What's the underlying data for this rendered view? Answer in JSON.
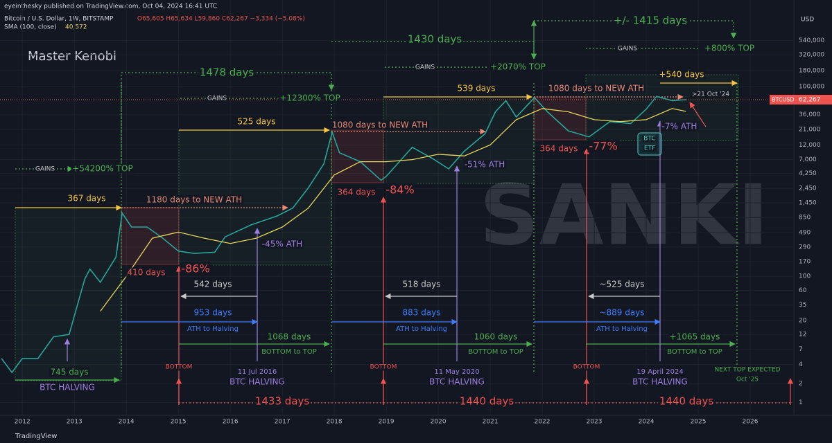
{
  "header": {
    "published": "eyeinthesky published on TradingView.com, Oct 04, 2024 16:41 UTC",
    "symbol": "Bitcoin / U.S. Dollar, 1W, BITSTAMP",
    "ohlc": "O65,605 H65,634 L59,860 C62,267 −3,334 (−5.08%)",
    "sma_name": "SMA (100, close)",
    "sma_value": "40,572",
    "currency": "USD",
    "author": "Master Kenobi",
    "watermark": "SANKI",
    "footer": "TradingView"
  },
  "chart_data": {
    "type": "line",
    "log_y": true,
    "grid": true,
    "xlim": [
      2011.57,
      2026.84
    ],
    "ylim": [
      0.63,
      857000
    ],
    "xticks": [
      2012,
      2013,
      2014,
      2015,
      2016,
      2017,
      2018,
      2019,
      2020,
      2021,
      2022,
      2023,
      2024,
      2025,
      2026
    ],
    "yticks": [
      {
        "value": 540000,
        "label": "540,000"
      },
      {
        "value": 320000,
        "label": "320,000"
      },
      {
        "value": 180000,
        "label": "180,000"
      },
      {
        "value": 100000,
        "label": "100,000"
      },
      {
        "value": 36000,
        "label": "36,000"
      },
      {
        "value": 21000,
        "label": "21,000"
      },
      {
        "value": 12000,
        "label": "12,000"
      },
      {
        "value": 7000,
        "label": "7,000"
      },
      {
        "value": 4250,
        "label": "4,250"
      },
      {
        "value": 2450,
        "label": "2,450"
      },
      {
        "value": 1450,
        "label": "1,450"
      },
      850,
      490,
      290,
      170,
      100,
      60,
      35,
      20,
      12,
      7,
      4,
      2,
      1
    ],
    "series": [
      {
        "name": "BTCUSD",
        "color": "#26a69a",
        "x": [
          2011.6,
          2011.8,
          2012.0,
          2012.3,
          2012.6,
          2012.9,
          2013.2,
          2013.3,
          2013.5,
          2013.8,
          2013.92,
          2014.1,
          2014.4,
          2014.7,
          2015.0,
          2015.3,
          2015.7,
          2015.9,
          2016.4,
          2016.9,
          2017.2,
          2017.5,
          2017.8,
          2017.96,
          2018.1,
          2018.5,
          2018.9,
          2019.0,
          2019.5,
          2019.9,
          2020.2,
          2020.5,
          2020.9,
          2021.1,
          2021.3,
          2021.5,
          2021.85,
          2022.1,
          2022.5,
          2022.9,
          2023.3,
          2023.7,
          2024.0,
          2024.2,
          2024.5,
          2024.76
        ],
        "values": [
          5,
          3,
          5,
          5,
          11,
          12,
          90,
          130,
          80,
          200,
          1000,
          600,
          600,
          400,
          250,
          230,
          240,
          420,
          650,
          900,
          1200,
          2500,
          6000,
          19000,
          9000,
          6500,
          3300,
          3800,
          11000,
          7200,
          5000,
          9500,
          18000,
          40000,
          60000,
          33000,
          67000,
          40000,
          20000,
          16000,
          28000,
          26000,
          44000,
          70000,
          60000,
          62267
        ]
      },
      {
        "name": "SMA (100, close)",
        "color": "#e6d55a",
        "x": [
          2013.5,
          2014.0,
          2014.5,
          2015.0,
          2015.5,
          2016.0,
          2016.5,
          2017.0,
          2017.5,
          2018.0,
          2018.5,
          2019.0,
          2019.5,
          2020.0,
          2020.5,
          2021.0,
          2021.5,
          2022.0,
          2022.5,
          2023.0,
          2023.5,
          2024.0,
          2024.5,
          2024.76
        ],
        "values": [
          28,
          100,
          400,
          500,
          400,
          330,
          400,
          600,
          1200,
          4000,
          6500,
          6500,
          7000,
          8500,
          8000,
          12000,
          30000,
          45000,
          40000,
          30000,
          28000,
          30000,
          45000,
          40572
        ]
      }
    ],
    "last_value": 62267,
    "last_value_label": "62,267",
    "last_value_name": "BTCUSD",
    "annotations": [
      "+/- 1415 days",
      "1430 days",
      "1478 days",
      "GAINS",
      "+800% TOP",
      "GAINS",
      "+2070% TOP",
      "GAINS",
      "+12300% TOP",
      "GAINS",
      "+54200% TOP",
      "525 days",
      "539 days",
      "+540 days",
      "367 days",
      "1080 days to NEW ATH",
      "1080 days to NEW ATH",
      "1180 days to NEW ATH",
      "364 days",
      "-84%",
      "364 days",
      "-77%",
      "410 days",
      "-86%",
      ">21 Oct '24",
      "-51% ATH",
      "-45% ATH",
      "-7% ATH",
      "BTC",
      "ETF",
      "542 days",
      "518 days",
      "~525 days",
      "953 days",
      "ATH to Halving",
      "883 days",
      "ATH to Halving",
      "~889 days",
      "ATH to Halving",
      "1068 days",
      "BOTTOM to TOP",
      "1060 days",
      "BOTTOM to TOP",
      "+1065 days",
      "BOTTOM to TOP",
      "745 days",
      "BTC HALVING",
      "BOTTOM",
      "11 Jul 2016",
      "BTC HALVING",
      "BOTTOM",
      "11 May 2020",
      "BTC HALVING",
      "BOTTOM",
      "19 April 2024",
      "BTC HALVING",
      "NEXT TOP EXPECTED",
      "Oct '25",
      "1433 days",
      "1440 days",
      "1440 days"
    ]
  }
}
